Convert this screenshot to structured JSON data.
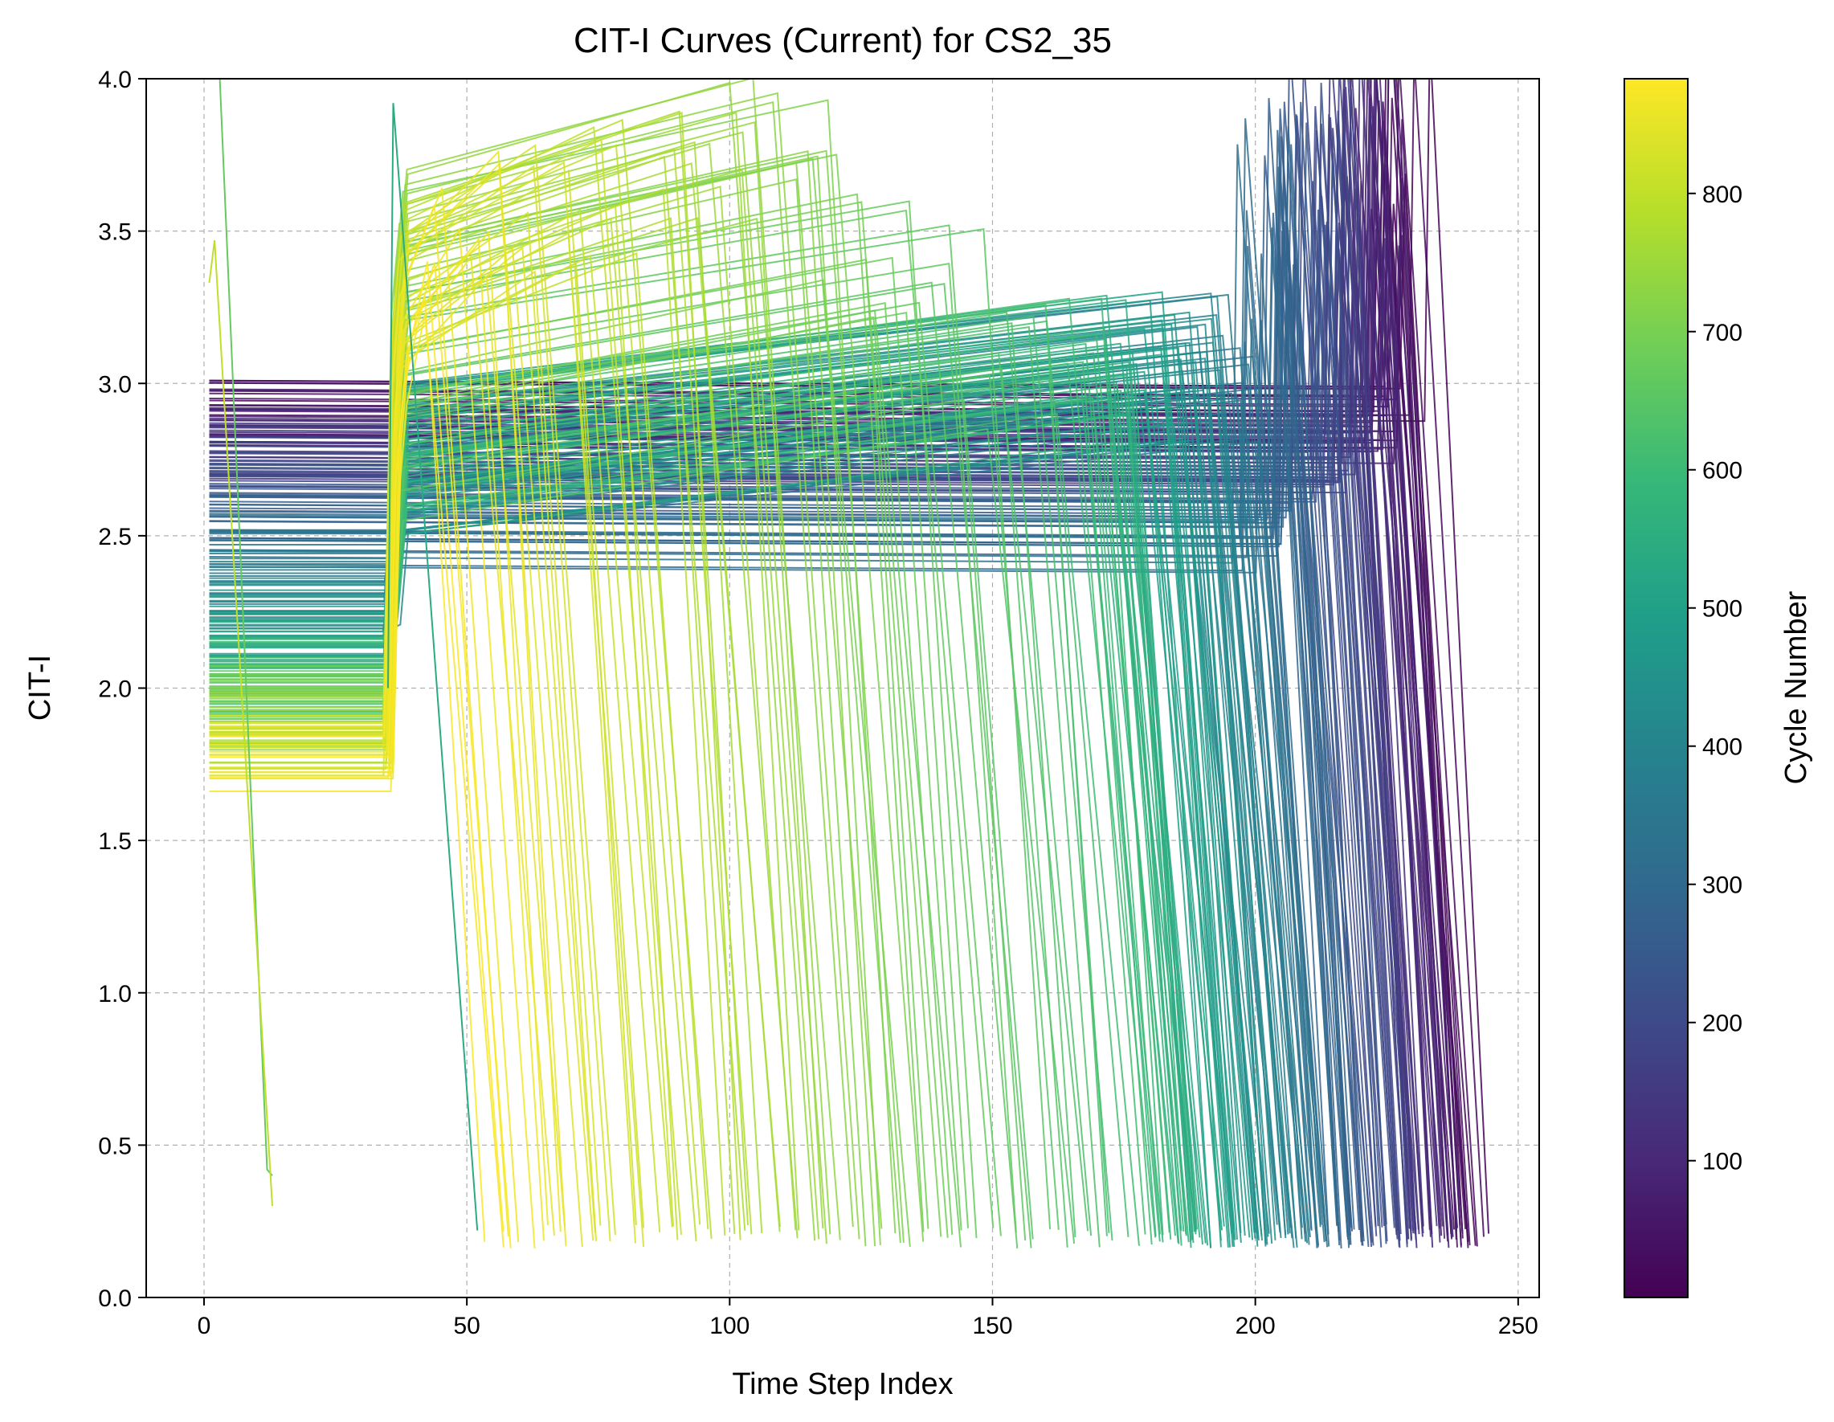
{
  "chart_data": {
    "type": "line",
    "title": "CIT-I Curves (Current) for CS2_35",
    "xlabel": "Time Step Index",
    "ylabel": "CIT-I",
    "xlim": [
      -11,
      254
    ],
    "ylim": [
      0.0,
      4.0
    ],
    "xticks": [
      0,
      50,
      100,
      150,
      200,
      250
    ],
    "yticks": [
      0.0,
      0.5,
      1.0,
      1.5,
      2.0,
      2.5,
      3.0,
      3.5,
      4.0
    ],
    "grid": true,
    "grid_style": "dashed",
    "colorbar": {
      "label": "Cycle Number",
      "colormap": "viridis",
      "range": [
        1,
        883
      ],
      "ticks": [
        100,
        200,
        300,
        400,
        500,
        600,
        700,
        800
      ]
    },
    "curve_count": 883,
    "series_pattern": {
      "plateau_start_x": 1,
      "plateau_level_by_cycle": [
        [
          1,
          2.95
        ],
        [
          200,
          2.72
        ],
        [
          400,
          2.3
        ],
        [
          600,
          2.05
        ],
        [
          880,
          1.75
        ]
      ],
      "drop_end_x_by_cycle": [
        [
          1,
          242
        ],
        [
          200,
          225
        ],
        [
          400,
          205
        ],
        [
          600,
          182
        ],
        [
          880,
          55
        ]
      ],
      "drop_end_value": 0.2
    },
    "annotations": [
      {
        "cycle": 670,
        "x": [
          2,
          3,
          12,
          13
        ],
        "y": [
          4.0,
          4.0,
          0.42,
          0.4
        ]
      },
      {
        "cycle": 800,
        "x": [
          1,
          2,
          13
        ],
        "y": [
          3.33,
          3.47,
          0.3
        ]
      },
      {
        "cycle": 540,
        "x": [
          35,
          36,
          40,
          52
        ],
        "y": [
          2.0,
          3.92,
          3.0,
          0.22
        ]
      }
    ]
  },
  "colors": {
    "viridis_stops": [
      "#440154",
      "#482878",
      "#3e4989",
      "#31688e",
      "#26828e",
      "#1f9e89",
      "#35b779",
      "#6ece58",
      "#b5de2b",
      "#fde725"
    ],
    "grid": "#b0b0b0",
    "axes": "#000000"
  }
}
